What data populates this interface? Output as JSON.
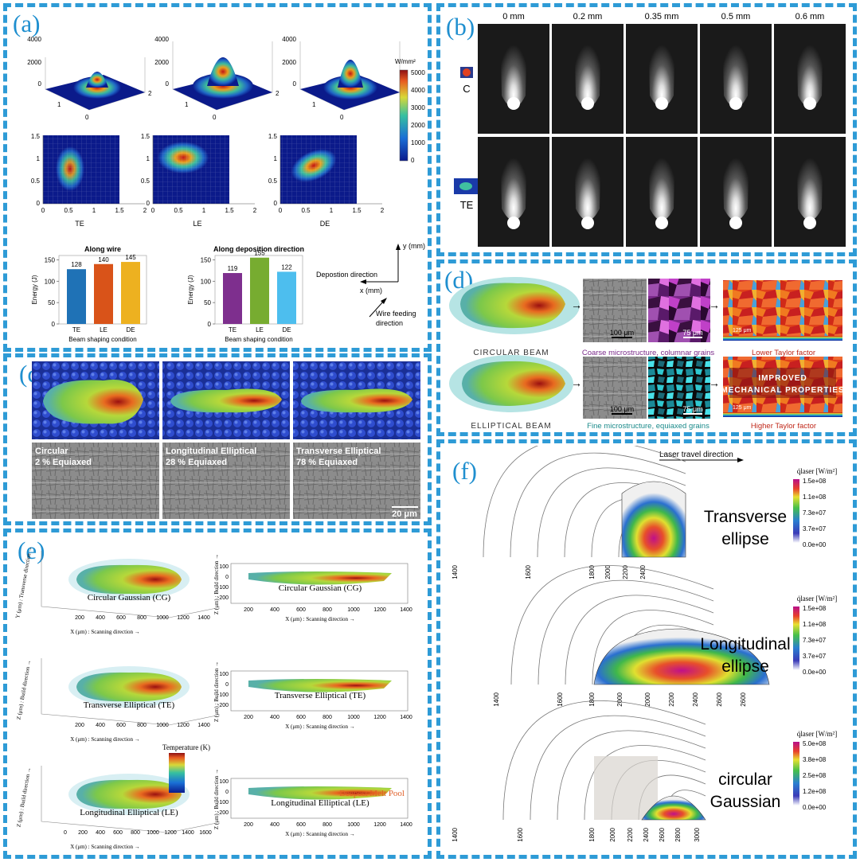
{
  "colors": {
    "border": "#2e9bd6",
    "label": "#1f8fcf",
    "bar_te": "#1f72b6",
    "bar_le": "#d95319",
    "bar_de": "#edb120",
    "bar2_te": "#7e2f8e",
    "bar2_le": "#77ac30",
    "bar2_de": "#4dbeee"
  },
  "panel_a": {
    "label": "(a)",
    "surf_ticks": {
      "z": [
        "4000",
        "2000",
        "0"
      ],
      "x": [
        "0",
        "1"
      ],
      "y": [
        "2"
      ]
    },
    "colorbar": {
      "unit": "W/mm²",
      "ticks": [
        "5000",
        "4000",
        "3000",
        "2000",
        "1000",
        "0"
      ]
    },
    "heatmap_yticks": [
      "1.5",
      "1",
      "0.5",
      "0"
    ],
    "heatmap_xticks": [
      "0",
      "0.5",
      "1",
      "1.5",
      "2"
    ],
    "heatmap_titles": [
      "TE",
      "LE",
      "DE"
    ],
    "axes_labels": {
      "y": "y (mm)",
      "x": "x (mm)",
      "depo": "Depostion direction",
      "wire": "Wire feeding",
      "wire2": "direction"
    }
  },
  "chart_data": [
    {
      "type": "bar",
      "title": "Along wire",
      "categories": [
        "TE",
        "LE",
        "DE"
      ],
      "values": [
        128,
        140,
        145
      ],
      "xlabel": "Beam shaping condition",
      "ylabel": "Energy (J)",
      "ylim": [
        0,
        160
      ],
      "yticks": [
        "150",
        "100",
        "50",
        "0"
      ]
    },
    {
      "type": "bar",
      "title": "Along deposition direction",
      "categories": [
        "TE",
        "LE",
        "DE"
      ],
      "values": [
        119,
        155,
        122
      ],
      "xlabel": "Beam shaping condition",
      "ylabel": "Energy (J)",
      "ylim": [
        0,
        160
      ],
      "yticks": [
        "150",
        "100",
        "50",
        "0"
      ]
    }
  ],
  "panel_b": {
    "label": "(b)",
    "columns": [
      "0 mm",
      "0.2 mm",
      "0.35 mm",
      "0.5 mm",
      "0.6 mm"
    ],
    "rows": [
      "C",
      "TE"
    ]
  },
  "panel_c": {
    "label": "(c)",
    "items": [
      {
        "name": "Circular",
        "pct": "2 % Equiaxed"
      },
      {
        "name": "Longitudinal Elliptical",
        "pct": "28 % Equiaxed"
      },
      {
        "name": "Transverse Elliptical",
        "pct": "78 % Equiaxed"
      }
    ],
    "scalebar": "20 μm"
  },
  "panel_d": {
    "label": "(d)",
    "row1": {
      "beam": "CIRCULAR BEAM",
      "sb1": "100 μm",
      "sb2": "75 μm",
      "sb3": "125 μm",
      "desc": "Coarse microstructure, columnar grains",
      "taylor": "Lower Taylor factor"
    },
    "row2": {
      "beam": "ELLIPTICAL BEAM",
      "sb1": "100 μm",
      "sb2": "75 μm",
      "sb3": "125 μm",
      "desc": "Fine microstructure, equiaxed grains",
      "taylor": "Higher Taylor factor",
      "banner1": "IMPROVED",
      "banner2": "MECHANICAL PROPERTIES"
    }
  },
  "panel_e": {
    "label": "(e)",
    "rows": [
      {
        "left": "Circular Gaussian (CG)",
        "right": "Circular Gaussian (CG)",
        "ylabel": "Y (μm) : Transverse direction →"
      },
      {
        "left": "Transverse Elliptical (TE)",
        "right": "Transverse Elliptical (TE)",
        "ylabel": "Z (μm) : Build direction →"
      },
      {
        "left": "Longitudinal Elliptical (LE)",
        "right": "Longitudinal Elliptical (LE)",
        "ylabel": "Z (μm) : Build direction →"
      }
    ],
    "xlabel": "X (μm) : Scanning direction →",
    "zlabel": "Z (μm) : Build direction →",
    "xticks_left": [
      "200",
      "400",
      "600",
      "800",
      "1000",
      "1200",
      "1400"
    ],
    "xticks_left3": [
      "0",
      "200",
      "400",
      "600",
      "800",
      "1000",
      "1200",
      "1400",
      "1600"
    ],
    "xticks_right": [
      "200",
      "400",
      "600",
      "800",
      "1000",
      "1200",
      "1400"
    ],
    "yticks_right": [
      "100",
      "0",
      "-100",
      "-200"
    ],
    "temp_label": "Temperature (K)",
    "deepest": "Deepest Melt Pool"
  },
  "panel_f": {
    "label": "(f)",
    "travel": "Laser travel direction",
    "legend_title": "q̇laser [W/m²]",
    "blocks": [
      {
        "name1": "Transverse",
        "name2": "ellipse",
        "ticks": [
          "1.5e+08",
          "1.1e+08",
          "7.3e+07",
          "3.7e+07",
          "0.0e+00"
        ],
        "contours": [
          "1400",
          "1600",
          "1800",
          "2000",
          "2200",
          "2400"
        ]
      },
      {
        "name1": "Longitudinal",
        "name2": "ellipse",
        "ticks": [
          "1.5e+08",
          "1.1e+08",
          "7.3e+07",
          "3.7e+07",
          "0.0e+00"
        ],
        "contours": [
          "1400",
          "1600",
          "1800",
          "2000",
          "2000",
          "2200",
          "2400",
          "2600",
          "2600"
        ]
      },
      {
        "name1": "circular",
        "name2": "Gaussian",
        "ticks": [
          "5.0e+08",
          "3.8e+08",
          "2.5e+08",
          "1.2e+08",
          "0.0e+00"
        ],
        "contours": [
          "1400",
          "1600",
          "1800",
          "2000",
          "2200",
          "2400",
          "2600",
          "2800",
          "3000"
        ]
      }
    ]
  }
}
